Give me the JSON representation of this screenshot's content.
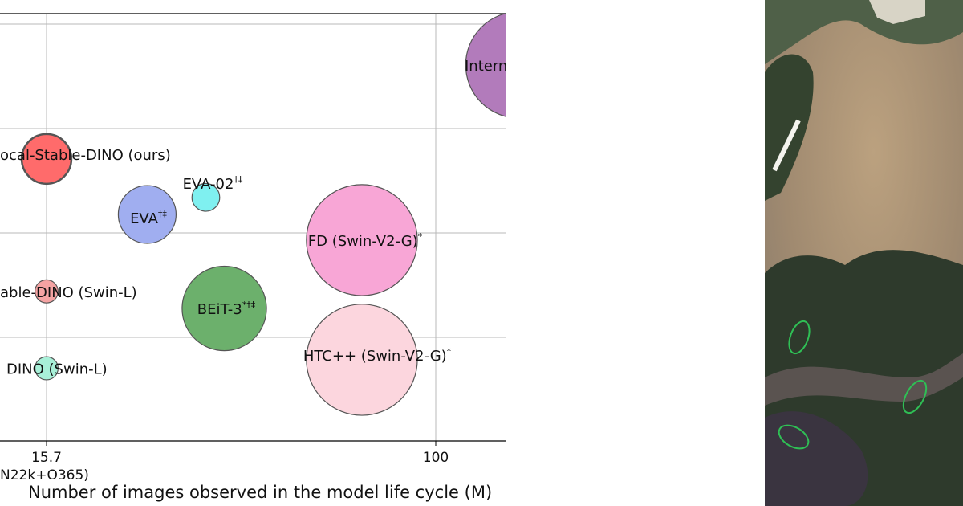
{
  "chart_data": {
    "type": "scatter",
    "title": "",
    "xlabel": "Number of images observed in the model life cycle (M)",
    "ylabel": "",
    "x_ticks": [
      {
        "value": 15.7,
        "label": "15.7",
        "sublabel": "N22k+O365)"
      },
      {
        "value": 100,
        "label": "100",
        "sublabel": ""
      }
    ],
    "grid": true,
    "points": [
      {
        "name": "Intern",
        "x": 118,
        "y": 0.88,
        "size": 0.92,
        "color": "#b27bbb",
        "sup": ""
      },
      {
        "name": "ocal-Stable-DINO (ours)",
        "x": 15.7,
        "y": 0.66,
        "size": 0.43,
        "color": "#ff6b6b",
        "sup": ""
      },
      {
        "name": "EVA",
        "x": 37.5,
        "y": 0.53,
        "size": 0.5,
        "color": "#a0aef0",
        "sup": "†‡"
      },
      {
        "name": "EVA-02",
        "x": 50.2,
        "y": 0.57,
        "size": 0.24,
        "color": "#7ff0f0",
        "sup": "†‡"
      },
      {
        "name": "FD (Swin-V2-G)",
        "x": 84,
        "y": 0.47,
        "size": 0.96,
        "color": "#f8a6d6",
        "sup": "*"
      },
      {
        "name": "able-DINO (Swin-L)",
        "x": 15.7,
        "y": 0.35,
        "size": 0.2,
        "color": "#f4a3a3",
        "sup": ""
      },
      {
        "name": "BEiT-3",
        "x": 54.2,
        "y": 0.31,
        "size": 0.73,
        "color": "#6cb06c",
        "sup": "*†‡"
      },
      {
        "name": "DINO (Swin-L)",
        "x": 15.7,
        "y": 0.17,
        "size": 0.2,
        "color": "#a8f0d8",
        "sup": ""
      },
      {
        "name": "HTC++ (Swin-V2-G)",
        "x": 84,
        "y": 0.19,
        "size": 0.96,
        "color": "#fcd6de",
        "sup": "*"
      }
    ]
  },
  "satellite_image": {
    "colors": {
      "field": "#a89276",
      "trees": "#2e3a2c",
      "shadow": "#3a3440",
      "highlight": "#2fbf55"
    }
  }
}
